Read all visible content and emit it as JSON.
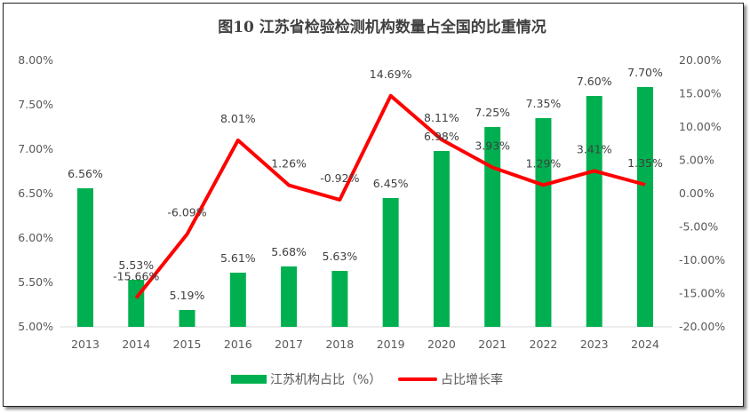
{
  "chart_data": {
    "type": "bar+line",
    "title": "图10    江苏省检验检测机构数量占全国的比重情况",
    "categories": [
      "2013",
      "2014",
      "2015",
      "2016",
      "2017",
      "2018",
      "2019",
      "2020",
      "2021",
      "2022",
      "2023",
      "2024"
    ],
    "series": [
      {
        "name": "江苏机构占比（%）",
        "type": "bar",
        "axis": "left",
        "color": "#00B050",
        "values": [
          6.56,
          5.53,
          5.19,
          5.61,
          5.68,
          5.63,
          6.45,
          6.98,
          7.25,
          7.35,
          7.6,
          7.7
        ]
      },
      {
        "name": "占比增长率",
        "type": "line",
        "axis": "right",
        "color": "#FF0000",
        "values": [
          null,
          -15.66,
          -6.09,
          8.01,
          1.26,
          -0.92,
          14.69,
          8.11,
          3.93,
          1.29,
          3.41,
          1.35
        ]
      }
    ],
    "y_left": {
      "range": [
        5.0,
        8.0
      ],
      "ticks": [
        "5.00%",
        "5.50%",
        "6.00%",
        "6.50%",
        "7.00%",
        "7.50%",
        "8.00%"
      ]
    },
    "y_right": {
      "range": [
        -20,
        20
      ],
      "ticks": [
        "-20.00%",
        "-15.00%",
        "-10.00%",
        "-5.00%",
        "0.00%",
        "5.00%",
        "10.00%",
        "15.00%",
        "20.00%"
      ]
    },
    "grid": false,
    "legend": "bottom"
  }
}
